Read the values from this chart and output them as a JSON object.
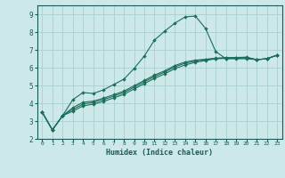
{
  "xlabel": "Humidex (Indice chaleur)",
  "bg_color": "#cce8e8",
  "grid_color": "#aad0d0",
  "line_color": "#1a6e5a",
  "xlim": [
    -0.5,
    23.5
  ],
  "ylim": [
    2.0,
    9.5
  ],
  "xticks": [
    0,
    1,
    2,
    3,
    4,
    5,
    6,
    7,
    8,
    9,
    10,
    11,
    12,
    13,
    14,
    15,
    16,
    17,
    18,
    19,
    20,
    21,
    22,
    23
  ],
  "yticks": [
    2,
    3,
    4,
    5,
    6,
    7,
    8,
    9
  ],
  "series": [
    [
      3.5,
      2.5,
      3.3,
      4.2,
      4.6,
      4.55,
      4.75,
      5.05,
      5.35,
      5.95,
      6.65,
      7.55,
      8.05,
      8.5,
      8.85,
      8.9,
      8.2,
      6.9,
      6.5,
      6.5,
      6.5,
      6.45,
      6.5,
      6.7
    ],
    [
      3.5,
      2.5,
      3.3,
      3.55,
      3.85,
      3.95,
      4.1,
      4.3,
      4.5,
      4.8,
      5.1,
      5.4,
      5.65,
      5.95,
      6.15,
      6.3,
      6.4,
      6.5,
      6.52,
      6.53,
      6.55,
      6.45,
      6.5,
      6.7
    ],
    [
      3.5,
      2.5,
      3.3,
      3.65,
      3.95,
      4.05,
      4.2,
      4.4,
      4.6,
      4.9,
      5.2,
      5.5,
      5.75,
      6.05,
      6.25,
      6.37,
      6.45,
      6.52,
      6.55,
      6.56,
      6.57,
      6.45,
      6.5,
      6.7
    ],
    [
      3.5,
      2.5,
      3.3,
      3.75,
      4.05,
      4.12,
      4.28,
      4.48,
      4.68,
      4.98,
      5.28,
      5.58,
      5.82,
      6.12,
      6.32,
      6.42,
      6.47,
      6.53,
      6.56,
      6.57,
      6.59,
      6.45,
      6.5,
      6.7
    ]
  ]
}
